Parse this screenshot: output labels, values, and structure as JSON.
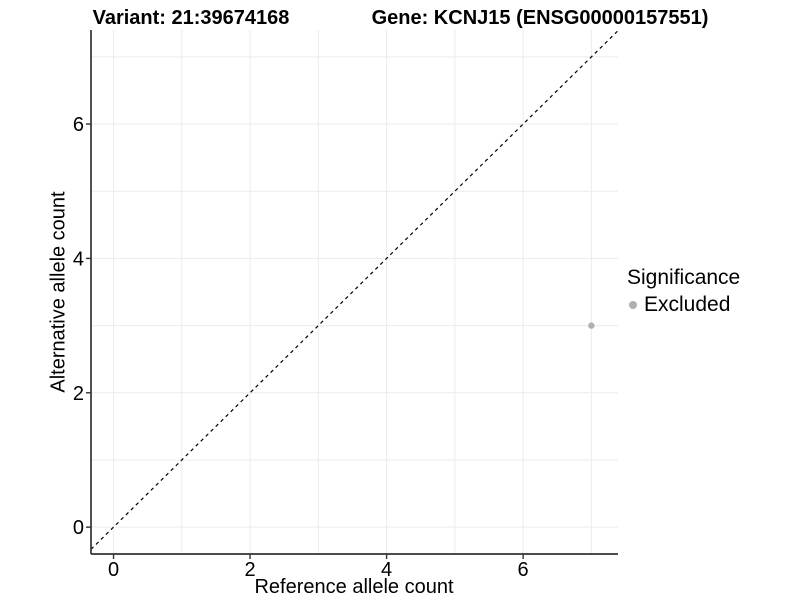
{
  "chart_data": {
    "type": "scatter",
    "title_left": "Variant: 21:39674168",
    "title_right": "Gene: KCNJ15 (ENSG00000157551)",
    "xlabel": "Reference allele count",
    "ylabel": "Alternative allele count",
    "xlim": [
      -0.33,
      7.39
    ],
    "ylim": [
      -0.4,
      7.4
    ],
    "x_ticks": {
      "values": [
        0,
        2,
        4,
        6
      ],
      "labels": [
        "0",
        "2",
        "4",
        "6"
      ]
    },
    "y_ticks": {
      "values": [
        0,
        2,
        4,
        6
      ],
      "labels": [
        "0",
        "2",
        "4",
        "6"
      ]
    },
    "grid_x": [
      0,
      1,
      2,
      3,
      4,
      5,
      6,
      7
    ],
    "grid_y": [
      0,
      1,
      2,
      3,
      4,
      5,
      6,
      7
    ],
    "grid_on": true,
    "points": [
      {
        "x": 7,
        "y": 3,
        "series": "Excluded"
      }
    ],
    "reference_line": {
      "type": "identity",
      "slope": 1,
      "intercept": 0,
      "style": "dashed"
    },
    "legend": {
      "title": "Significance",
      "position": "right",
      "entries": [
        {
          "label": "Excluded",
          "color": "#b0b0b0",
          "marker": "circle"
        }
      ]
    },
    "colors": {
      "point": "#b0b0b0",
      "grid": "#ebebeb",
      "axis": "#333333",
      "reference_line": "#000000",
      "text": "#000000"
    }
  }
}
